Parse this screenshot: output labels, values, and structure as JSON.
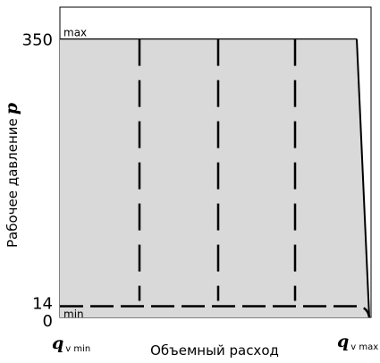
{
  "chart_data": {
    "type": "area",
    "xlabel": "Объемный расход",
    "ylabel": "Рабочее давление",
    "ylabel_symbol": "p",
    "y_ticks": [
      "350",
      "14",
      "0"
    ],
    "y_tick_values": [
      350,
      14,
      0
    ],
    "ylim": [
      0,
      390
    ],
    "x_ticks": [
      {
        "symbol": "q",
        "sub": "v min"
      },
      {
        "symbol": "q",
        "sub": "v max"
      }
    ],
    "max_label": "max",
    "min_label": "min",
    "p_max": 350,
    "p_min": 14,
    "region_fill": "#d9d9d9",
    "dashed_vertical_lines": 4,
    "grid": false
  }
}
